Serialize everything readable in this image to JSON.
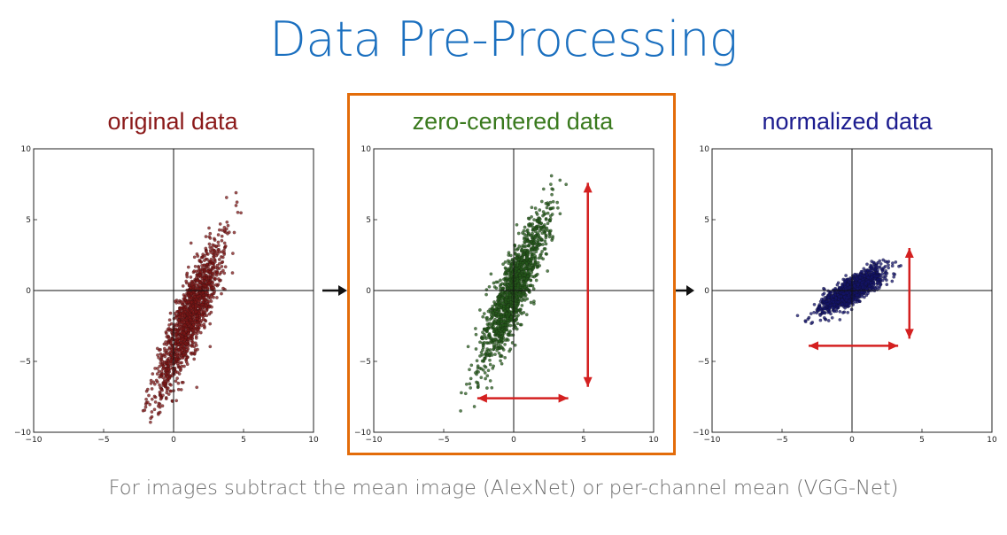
{
  "slide": {
    "title": "Data Pre-Processing",
    "caption": "For images subtract the mean image (AlexNet) or per-channel mean (VGG-Net)"
  },
  "colors": {
    "title": "#1a6fbf",
    "highlight_box": "#e36c0a",
    "variance_arrows": "#d42020",
    "flow_arrows": "#111111"
  },
  "icons": [
    "right-arrow-icon",
    "double-arrow-icon"
  ],
  "chart_data": [
    {
      "type": "scatter",
      "title": "original data",
      "title_color": "#8b1a1a",
      "point_color": "#7d1515",
      "xlim": [
        -10,
        10
      ],
      "ylim": [
        -10,
        10
      ],
      "x_ticks": [
        "−10",
        "−5",
        "0",
        "5",
        "10"
      ],
      "y_ticks": [
        "10",
        "5",
        "0",
        "−5",
        "−10"
      ],
      "grid": false,
      "distribution": {
        "mean_x": 1.2,
        "mean_y": -1.8,
        "sd_major": 2.9,
        "sd_minor": 0.55,
        "angle_deg": 68
      },
      "n_points": 1400,
      "variance_arrows": null
    },
    {
      "type": "scatter",
      "title": "zero-centered data",
      "title_color": "#3a7a1e",
      "point_color": "#245a1a",
      "xlim": [
        -10,
        10
      ],
      "ylim": [
        -10,
        10
      ],
      "x_ticks": [
        "−10",
        "−5",
        "0",
        "5",
        "10"
      ],
      "y_ticks": [
        "10",
        "5",
        "0",
        "−5",
        "−10"
      ],
      "grid": false,
      "distribution": {
        "mean_x": 0,
        "mean_y": 0,
        "sd_major": 2.9,
        "sd_minor": 0.55,
        "angle_deg": 68
      },
      "n_points": 1400,
      "variance_arrows": {
        "vertical": {
          "x": 5.3,
          "y1": -6.8,
          "y2": 7.6
        },
        "horizontal": {
          "y": -7.6,
          "x1": -2.6,
          "x2": 3.9
        }
      }
    },
    {
      "type": "scatter",
      "title": "normalized data",
      "title_color": "#1c1c8f",
      "point_color": "#13136b",
      "xlim": [
        -10,
        10
      ],
      "ylim": [
        -10,
        10
      ],
      "x_ticks": [
        "−10",
        "−5",
        "0",
        "5",
        "10"
      ],
      "y_ticks": [
        "10",
        "5",
        "0",
        "−5",
        "−10"
      ],
      "grid": false,
      "distribution": {
        "mean_x": 0,
        "mean_y": 0,
        "sd_major": 1.25,
        "sd_minor": 0.38,
        "angle_deg": 32
      },
      "n_points": 1400,
      "variance_arrows": {
        "vertical": {
          "x": 4.1,
          "y1": -3.4,
          "y2": 3.0
        },
        "horizontal": {
          "y": -3.9,
          "x1": -3.1,
          "x2": 3.3
        }
      }
    }
  ]
}
